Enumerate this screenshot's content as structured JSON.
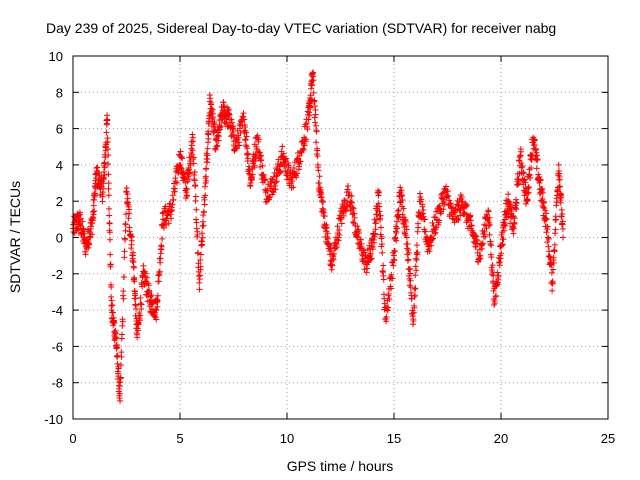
{
  "chart_data": {
    "type": "scatter",
    "title": "Day 239 of 2025, Sidereal Day-to-day VTEC variation (SDTVAR) for receiver nabg",
    "xlabel": "GPS time / hours",
    "ylabel": "SDTVAR / TECUs",
    "xlim": [
      0,
      25
    ],
    "ylim": [
      -10,
      10
    ],
    "x_ticks": [
      "0",
      "5",
      "10",
      "15",
      "20",
      "25"
    ],
    "y_ticks": [
      "10",
      "8",
      "6",
      "4",
      "2",
      "0",
      "-2",
      "-4",
      "-6",
      "-8",
      "-10"
    ],
    "grid": true,
    "marker": "+",
    "series_color": "#ff0000",
    "series": [
      {
        "name": "SDTVAR",
        "x": [
          0.0,
          0.3,
          0.6,
          0.9,
          1.1,
          1.4,
          1.6,
          1.8,
          2.0,
          2.2,
          2.5,
          2.8,
          3.0,
          3.3,
          3.6,
          3.9,
          4.2,
          4.6,
          5.0,
          5.3,
          5.6,
          5.9,
          6.2,
          6.4,
          6.7,
          7.0,
          7.3,
          7.6,
          8.0,
          8.3,
          8.6,
          9.0,
          9.4,
          9.8,
          10.2,
          10.6,
          11.0,
          11.2,
          11.5,
          11.8,
          12.1,
          12.5,
          12.9,
          13.3,
          13.7,
          14.0,
          14.3,
          14.6,
          15.0,
          15.3,
          15.6,
          15.9,
          16.2,
          16.6,
          17.0,
          17.4,
          17.8,
          18.2,
          18.6,
          19.0,
          19.4,
          19.7,
          20.0,
          20.3,
          20.6,
          20.9,
          21.2,
          21.5,
          21.8,
          22.1,
          22.4,
          22.7,
          22.9
        ],
        "y": [
          0.5,
          1.0,
          -0.5,
          0.8,
          3.5,
          2.5,
          6.5,
          -4.0,
          -5.5,
          -9.0,
          2.5,
          -1.0,
          -5.5,
          -2.0,
          -3.5,
          -4.0,
          1.0,
          1.5,
          4.5,
          2.5,
          5.5,
          -2.5,
          3.0,
          7.5,
          5.0,
          7.0,
          6.5,
          5.0,
          6.5,
          3.0,
          5.5,
          2.5,
          3.0,
          4.5,
          3.0,
          4.5,
          6.5,
          9.0,
          3.0,
          0.5,
          -1.5,
          1.0,
          2.5,
          0.0,
          -1.5,
          -0.5,
          2.5,
          -4.5,
          -1.0,
          2.5,
          0.0,
          -4.5,
          2.0,
          -0.5,
          1.0,
          2.5,
          1.0,
          2.0,
          0.5,
          -1.0,
          1.5,
          -3.5,
          -0.5,
          2.0,
          0.5,
          4.5,
          2.0,
          5.5,
          3.0,
          1.0,
          -2.5,
          4.0,
          0.0
        ]
      }
    ]
  }
}
